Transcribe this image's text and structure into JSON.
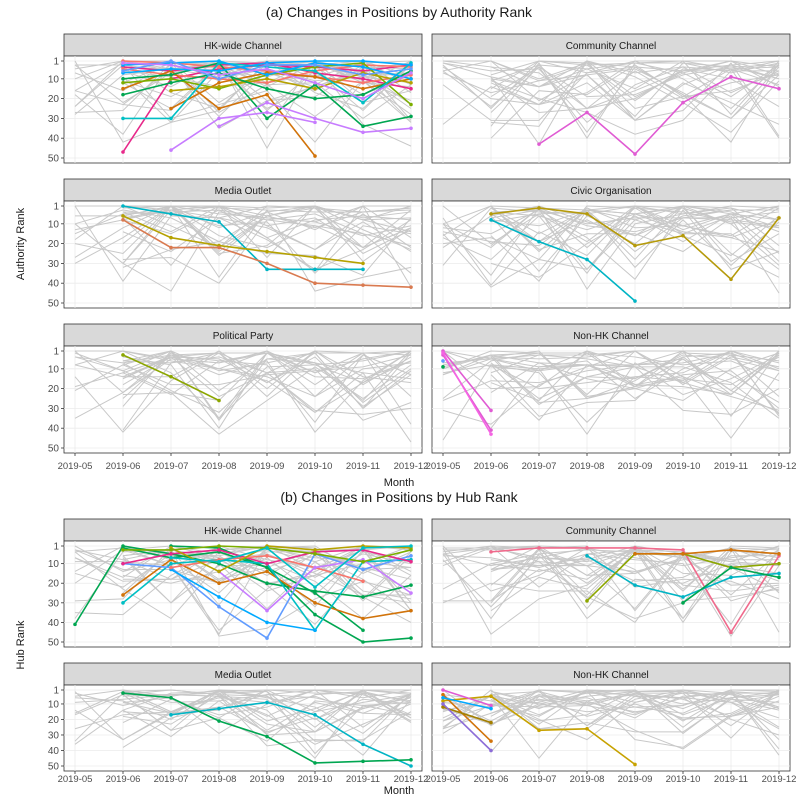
{
  "chart_data": [
    {
      "type": "line",
      "title": "(a) Changes in Positions by Authority Rank",
      "xlabel": "Month",
      "ylabel": "Authority Rank",
      "x": [
        "2019-05",
        "2019-06",
        "2019-07",
        "2019-08",
        "2019-09",
        "2019-10",
        "2019-11",
        "2019-12"
      ],
      "ylim": [
        1,
        50
      ],
      "y_reversed": true,
      "yticks": [
        1,
        10,
        20,
        30,
        40,
        50
      ],
      "grid": true,
      "facets": [
        {
          "name": "HK-wide Channel",
          "series": [
            {
              "color": "#e7298a",
              "values": [
                null,
                47,
                10,
                5,
                3,
                4,
                6,
                3
              ]
            },
            {
              "color": "#e7298a",
              "values": [
                null,
                4,
                6,
                3,
                2,
                7,
                10,
                15
              ]
            },
            {
              "color": "#f8766d",
              "values": [
                null,
                1,
                2,
                4,
                6,
                9,
                12,
                8
              ]
            },
            {
              "color": "#f8766d",
              "values": [
                null,
                5,
                8,
                10,
                12,
                6,
                3,
                4
              ]
            },
            {
              "color": "#d1730a",
              "values": [
                null,
                15,
                6,
                25,
                18,
                49,
                null,
                null
              ]
            },
            {
              "color": "#d1730a",
              "values": [
                null,
                null,
                25,
                12,
                7,
                9,
                15,
                10
              ]
            },
            {
              "color": "#7cae00",
              "values": [
                null,
                12,
                10,
                15,
                8,
                4,
                2,
                23
              ]
            },
            {
              "color": "#b5a100",
              "values": [
                null,
                null,
                16,
                14,
                10,
                15,
                7,
                12
              ]
            },
            {
              "color": "#00a651",
              "values": [
                null,
                10,
                8,
                2,
                30,
                13,
                34,
                29
              ]
            },
            {
              "color": "#00a651",
              "values": [
                null,
                18,
                12,
                7,
                15,
                20,
                18,
                6
              ]
            },
            {
              "color": "#00bfc4",
              "values": [
                null,
                30,
                30,
                2,
                4,
                6,
                22,
                2
              ]
            },
            {
              "color": "#00a9ff",
              "values": [
                null,
                3,
                2,
                1,
                8,
                2,
                4,
                10
              ]
            },
            {
              "color": "#00a9ff",
              "values": [
                null,
                7,
                5,
                6,
                2,
                1,
                1,
                3
              ]
            },
            {
              "color": "#619cff",
              "values": [
                null,
                6,
                1,
                10,
                3,
                3,
                8,
                5
              ]
            },
            {
              "color": "#c77cff",
              "values": [
                null,
                null,
                46,
                30,
                27,
                32,
                null,
                null
              ]
            },
            {
              "color": "#c77cff",
              "values": [
                null,
                null,
                null,
                34,
                22,
                30,
                37,
                35
              ]
            },
            {
              "color": "#c77cff",
              "values": [
                null,
                2,
                3,
                8,
                5,
                12,
                20,
                7
              ]
            }
          ]
        },
        {
          "name": "Community Channel",
          "series": [
            {
              "color": "#e05bd3",
              "values": [
                null,
                null,
                43,
                27,
                48,
                22,
                9,
                15
              ]
            }
          ]
        },
        {
          "name": "Media Outlet",
          "series": [
            {
              "color": "#00b4c4",
              "values": [
                null,
                1,
                5,
                9,
                33,
                33,
                33,
                null
              ]
            },
            {
              "color": "#b5a100",
              "values": [
                null,
                6,
                17,
                21,
                24,
                27,
                30,
                null
              ]
            },
            {
              "color": "#d97a50",
              "values": [
                null,
                8,
                22,
                22,
                30,
                40,
                41,
                42
              ]
            }
          ]
        },
        {
          "name": "Civic Organisation",
          "series": [
            {
              "color": "#b59a0b",
              "values": [
                null,
                5,
                2,
                5,
                21,
                16,
                38,
                7
              ]
            },
            {
              "color": "#00b4c4",
              "values": [
                null,
                8,
                19,
                28,
                49,
                null,
                null,
                null
              ]
            }
          ]
        },
        {
          "name": "Political Party",
          "series": [
            {
              "color": "#8ca600",
              "values": [
                null,
                3,
                14,
                26,
                null,
                null,
                null,
                null
              ]
            }
          ]
        },
        {
          "name": "Non-HK Channel",
          "series": [
            {
              "color": "#e05bd3",
              "values": [
                1,
                31,
                null,
                null,
                null,
                null,
                null,
                null
              ]
            },
            {
              "color": "#e05bd3",
              "values": [
                3,
                41,
                null,
                null,
                null,
                null,
                null,
                null
              ]
            },
            {
              "color": "#f564e3",
              "values": [
                2,
                43,
                null,
                null,
                null,
                null,
                null,
                null
              ]
            },
            {
              "color": "#00a651",
              "values": [
                9,
                null,
                null,
                null,
                null,
                null,
                null,
                null
              ]
            },
            {
              "color": "#619cff",
              "values": [
                6,
                null,
                null,
                null,
                null,
                null,
                null,
                null
              ]
            }
          ]
        }
      ]
    },
    {
      "type": "line",
      "title": "(b) Changes in Positions by Hub Rank",
      "xlabel": "Month",
      "ylabel": "Hub Rank",
      "x": [
        "2019-05",
        "2019-06",
        "2019-07",
        "2019-08",
        "2019-09",
        "2019-10",
        "2019-11",
        "2019-12"
      ],
      "ylim": [
        1,
        50
      ],
      "y_reversed": true,
      "yticks": [
        1,
        10,
        20,
        30,
        40,
        50
      ],
      "grid": true,
      "facets": [
        {
          "name": "HK-wide Channel",
          "series": [
            {
              "color": "#00a651",
              "values": [
                41,
                1,
                5,
                10,
                20,
                24,
                27,
                21
              ]
            },
            {
              "color": "#00a651",
              "values": [
                null,
                2,
                7,
                4,
                12,
                36,
                50,
                48
              ]
            },
            {
              "color": "#00a651",
              "values": [
                null,
                null,
                1,
                2,
                12,
                25,
                44,
                null
              ]
            },
            {
              "color": "#d1730a",
              "values": [
                null,
                26,
                8,
                20,
                14,
                30,
                38,
                34
              ]
            },
            {
              "color": "#00bfc4",
              "values": [
                null,
                30,
                10,
                8,
                10,
                44,
                9,
                8
              ]
            },
            {
              "color": "#619cff",
              "values": [
                null,
                10,
                12,
                32,
                48,
                5,
                13,
                6
              ]
            },
            {
              "color": "#00a9ff",
              "values": [
                null,
                null,
                13,
                27,
                40,
                44,
                null,
                null
              ]
            },
            {
              "color": "#e7298a",
              "values": [
                null,
                10,
                5,
                3,
                10,
                4,
                3,
                9
              ]
            },
            {
              "color": "#f8766d",
              "values": [
                null,
                null,
                12,
                8,
                6,
                12,
                19,
                null
              ]
            },
            {
              "color": "#c77cff",
              "values": [
                null,
                null,
                null,
                14,
                34,
                12,
                8,
                25
              ]
            },
            {
              "color": "#b5a100",
              "values": [
                null,
                null,
                2,
                14,
                1,
                3,
                1,
                2
              ]
            },
            {
              "color": "#7cae00",
              "values": [
                null,
                3,
                3,
                1,
                2,
                5,
                9,
                3
              ]
            },
            {
              "color": "#00bfc4",
              "values": [
                null,
                null,
                7,
                9,
                2,
                22,
                2,
                1
              ]
            }
          ]
        },
        {
          "name": "Community Channel",
          "series": [
            {
              "color": "#f06a8c",
              "values": [
                null,
                4,
                2,
                2,
                2,
                3,
                45,
                6
              ]
            },
            {
              "color": "#00b4c4",
              "values": [
                null,
                null,
                null,
                6,
                21,
                27,
                17,
                15
              ]
            },
            {
              "color": "#8ca600",
              "values": [
                null,
                null,
                null,
                29,
                5,
                5,
                12,
                10
              ]
            },
            {
              "color": "#d1730a",
              "values": [
                null,
                null,
                null,
                null,
                5,
                5,
                3,
                5
              ]
            },
            {
              "color": "#00a651",
              "values": [
                null,
                null,
                null,
                null,
                null,
                30,
                12,
                17
              ]
            }
          ]
        },
        {
          "name": "Media Outlet",
          "series": [
            {
              "color": "#00b4c4",
              "values": [
                null,
                null,
                17,
                13,
                9,
                17,
                36,
                50
              ]
            },
            {
              "color": "#00a651",
              "values": [
                null,
                3,
                6,
                21,
                31,
                48,
                47,
                46
              ]
            }
          ]
        },
        {
          "name": "Non-HK Channel",
          "series": [
            {
              "color": "#c7a200",
              "values": [
                8,
                5,
                27,
                26,
                49,
                null,
                null,
                null
              ]
            },
            {
              "color": "#d1730a",
              "values": [
                4,
                34,
                null,
                null,
                null,
                null,
                null,
                null
              ]
            },
            {
              "color": "#a37f00",
              "values": [
                12,
                22,
                null,
                null,
                null,
                null,
                null,
                null
              ]
            },
            {
              "color": "#8c6cd8",
              "values": [
                10,
                40,
                null,
                null,
                null,
                null,
                null,
                null
              ]
            },
            {
              "color": "#e05bd3",
              "values": [
                1,
                11,
                null,
                null,
                null,
                null,
                null,
                null
              ]
            },
            {
              "color": "#00a9ff",
              "values": [
                6,
                13,
                null,
                null,
                null,
                null,
                null,
                null
              ]
            }
          ]
        }
      ]
    }
  ]
}
